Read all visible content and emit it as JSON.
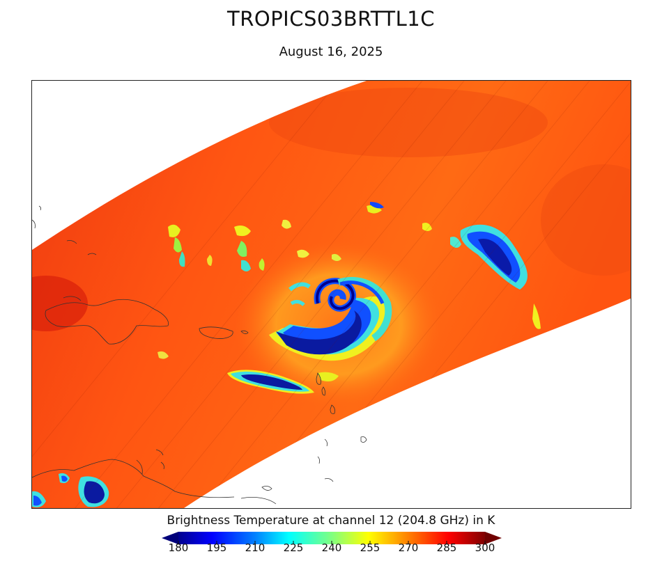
{
  "title": "TROPICS03BRTTL1C",
  "date": "August 16, 2025",
  "colorbar": {
    "label": "Brightness Temperature at channel 12 (204.8 GHz) in K",
    "min": 180,
    "max": 300,
    "ticks": [
      180,
      195,
      210,
      225,
      240,
      255,
      270,
      285,
      300
    ],
    "extend": "both",
    "colormap": "jet"
  },
  "colors": {
    "warm_background": "#ff5a10",
    "warm_dark": "#e02a08",
    "cold_core": "#00008c",
    "cold_edge": "#1050ff",
    "cyan": "#40e0e0",
    "yellow": "#f0f020"
  }
}
